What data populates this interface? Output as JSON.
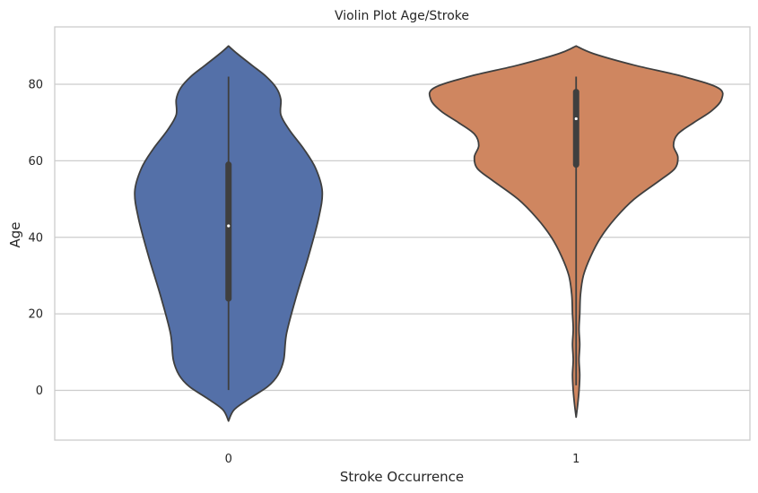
{
  "chart_data": {
    "type": "violin",
    "title": "Violin Plot Age/Stroke",
    "xlabel": "Stroke Occurrence",
    "ylabel": "Age",
    "categories": [
      "0",
      "1"
    ],
    "ylim": [
      -13,
      95
    ],
    "yticks": [
      0,
      20,
      40,
      60,
      80
    ],
    "grid": "horizontal",
    "colors": {
      "0": "#5470a8",
      "1": "#cf8660",
      "edge": "#3f3f3f",
      "grid": "#cccccc",
      "frame": "#cccccc"
    },
    "violins": [
      {
        "category": "0",
        "min": 0.08,
        "q1": 24,
        "median": 43,
        "q3": 59,
        "max": 82,
        "kde_range": [
          -8,
          90
        ],
        "density": [
          [
            -8,
            0.0
          ],
          [
            -5,
            0.04
          ],
          [
            -2,
            0.15
          ],
          [
            1,
            0.27
          ],
          [
            4,
            0.34
          ],
          [
            8,
            0.38
          ],
          [
            15,
            0.4
          ],
          [
            25,
            0.47
          ],
          [
            35,
            0.55
          ],
          [
            45,
            0.62
          ],
          [
            52,
            0.645
          ],
          [
            58,
            0.6
          ],
          [
            63,
            0.52
          ],
          [
            68,
            0.42
          ],
          [
            72,
            0.36
          ],
          [
            76,
            0.36
          ],
          [
            79,
            0.33
          ],
          [
            82,
            0.26
          ],
          [
            85,
            0.16
          ],
          [
            88,
            0.06
          ],
          [
            90,
            0.0
          ]
        ]
      },
      {
        "category": "1",
        "min": 1.32,
        "q1": 59,
        "median": 71,
        "q3": 78,
        "max": 82,
        "kde_range": [
          -7,
          90
        ],
        "density": [
          [
            -7,
            0.0
          ],
          [
            -4,
            0.01
          ],
          [
            0,
            0.02
          ],
          [
            4,
            0.025
          ],
          [
            8,
            0.02
          ],
          [
            12,
            0.025
          ],
          [
            16,
            0.02
          ],
          [
            20,
            0.025
          ],
          [
            25,
            0.03
          ],
          [
            30,
            0.05
          ],
          [
            35,
            0.1
          ],
          [
            40,
            0.17
          ],
          [
            45,
            0.27
          ],
          [
            50,
            0.4
          ],
          [
            55,
            0.58
          ],
          [
            58,
            0.68
          ],
          [
            61,
            0.7
          ],
          [
            64,
            0.67
          ],
          [
            67,
            0.7
          ],
          [
            70,
            0.81
          ],
          [
            73,
            0.93
          ],
          [
            76,
            1.0
          ],
          [
            79,
            0.98
          ],
          [
            82,
            0.74
          ],
          [
            85,
            0.4
          ],
          [
            88,
            0.12
          ],
          [
            90,
            0.0
          ]
        ]
      }
    ]
  }
}
